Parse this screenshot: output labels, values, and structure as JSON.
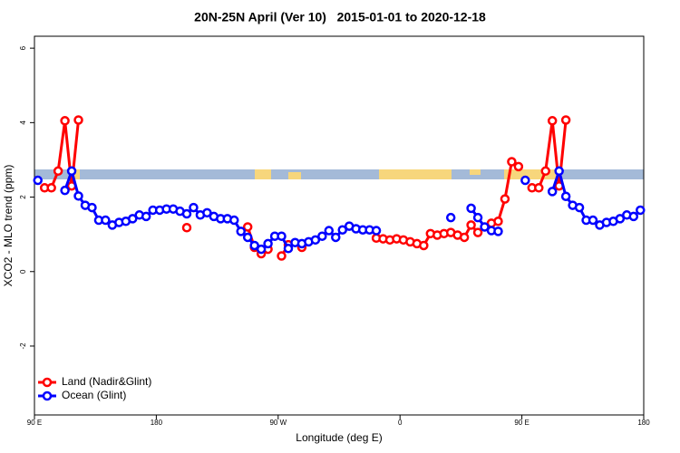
{
  "chart_data": {
    "type": "line",
    "title": "20N-25N April (Ver 10)   2015-01-01 to 2020-12-18",
    "xlabel": "Longitude (deg E)",
    "ylabel": "XCO2 - MLO trend (ppm)",
    "xlim": [
      90,
      540
    ],
    "ylim": [
      -3.85,
      6.32
    ],
    "xticks": [
      {
        "value": 90,
        "label": "90 E"
      },
      180,
      {
        "value": 270,
        "label": "90 W"
      },
      {
        "value": 360,
        "label": "0"
      },
      {
        "value": 450,
        "label": "90 E"
      },
      {
        "value": 540,
        "label": "180"
      }
    ],
    "yticks": [
      -2,
      0,
      2,
      4,
      6
    ],
    "legend": "bottom-left",
    "x": [
      92.5,
      97.5,
      102.5,
      107.5,
      112.5,
      117.5,
      122.5,
      127.5,
      132.5,
      137.5,
      142.5,
      147.5,
      152.5,
      157.5,
      162.5,
      167.5,
      172.5,
      177.5,
      182.5,
      187.5,
      192.5,
      197.5,
      202.5,
      207.5,
      212.5,
      217.5,
      222.5,
      227.5,
      232.5,
      237.5,
      242.5,
      247.5,
      252.5,
      257.5,
      262.5,
      267.5,
      272.5,
      277.5,
      282.5,
      287.5,
      292.5,
      297.5,
      302.5,
      307.5,
      312.5,
      317.5,
      322.5,
      327.5,
      332.5,
      337.5,
      342.5,
      347.5,
      352.5,
      357.5,
      362.5,
      367.5,
      372.5,
      377.5,
      382.5,
      387.5,
      392.5,
      397.5,
      402.5,
      407.5,
      412.5,
      417.5,
      422.5,
      427.5,
      432.5,
      437.5,
      442.5,
      447.5,
      452.5,
      457.5,
      462.5,
      467.5,
      472.5,
      477.5,
      482.5,
      487.5,
      492.5,
      497.5,
      502.5,
      507.5,
      512.5,
      517.5,
      522.5,
      527.5,
      532.5,
      537.5
    ],
    "series": [
      {
        "name": "Land (Nadir&Glint)",
        "color": "#ff0000",
        "values": [
          null,
          2.25,
          2.25,
          2.7,
          4.05,
          2.3,
          4.07,
          null,
          null,
          null,
          null,
          null,
          null,
          null,
          null,
          null,
          null,
          null,
          null,
          null,
          null,
          null,
          1.18,
          null,
          null,
          null,
          null,
          null,
          null,
          null,
          null,
          1.2,
          0.65,
          0.48,
          0.6,
          null,
          0.42,
          0.72,
          null,
          0.65,
          null,
          null,
          null,
          null,
          null,
          null,
          null,
          null,
          null,
          null,
          0.9,
          0.88,
          0.85,
          0.88,
          0.85,
          0.8,
          0.75,
          0.7,
          1.02,
          0.98,
          1.02,
          1.05,
          0.98,
          0.92,
          1.25,
          1.05,
          null,
          1.3,
          1.35,
          1.95,
          2.95,
          2.82,
          null,
          2.25,
          2.25,
          2.7,
          4.05,
          2.3,
          4.07,
          null,
          null,
          null,
          null,
          null,
          null,
          null,
          null,
          null,
          null,
          null
        ]
      },
      {
        "name": "Ocean (Glint)",
        "color": "#0000ff",
        "values": [
          2.45,
          null,
          null,
          null,
          2.18,
          2.7,
          2.03,
          1.78,
          1.72,
          1.38,
          1.38,
          1.25,
          1.32,
          1.35,
          1.42,
          1.52,
          1.48,
          1.65,
          1.65,
          1.68,
          1.68,
          1.62,
          1.55,
          1.72,
          1.52,
          1.58,
          1.48,
          1.42,
          1.42,
          1.38,
          1.08,
          0.92,
          0.7,
          0.6,
          0.75,
          0.95,
          0.95,
          0.62,
          0.78,
          0.75,
          0.8,
          0.85,
          0.95,
          1.1,
          0.92,
          1.12,
          1.22,
          1.15,
          1.12,
          1.12,
          1.1,
          null,
          null,
          null,
          null,
          null,
          null,
          null,
          null,
          null,
          null,
          1.45,
          null,
          null,
          1.7,
          1.45,
          1.2,
          1.1,
          1.08,
          null,
          null,
          null,
          2.45,
          null,
          null,
          null,
          2.15,
          2.7,
          2.02,
          1.78,
          1.72,
          1.38,
          1.38,
          1.25,
          1.32,
          1.35,
          1.42,
          1.52,
          1.48,
          1.65
        ]
      }
    ]
  }
}
